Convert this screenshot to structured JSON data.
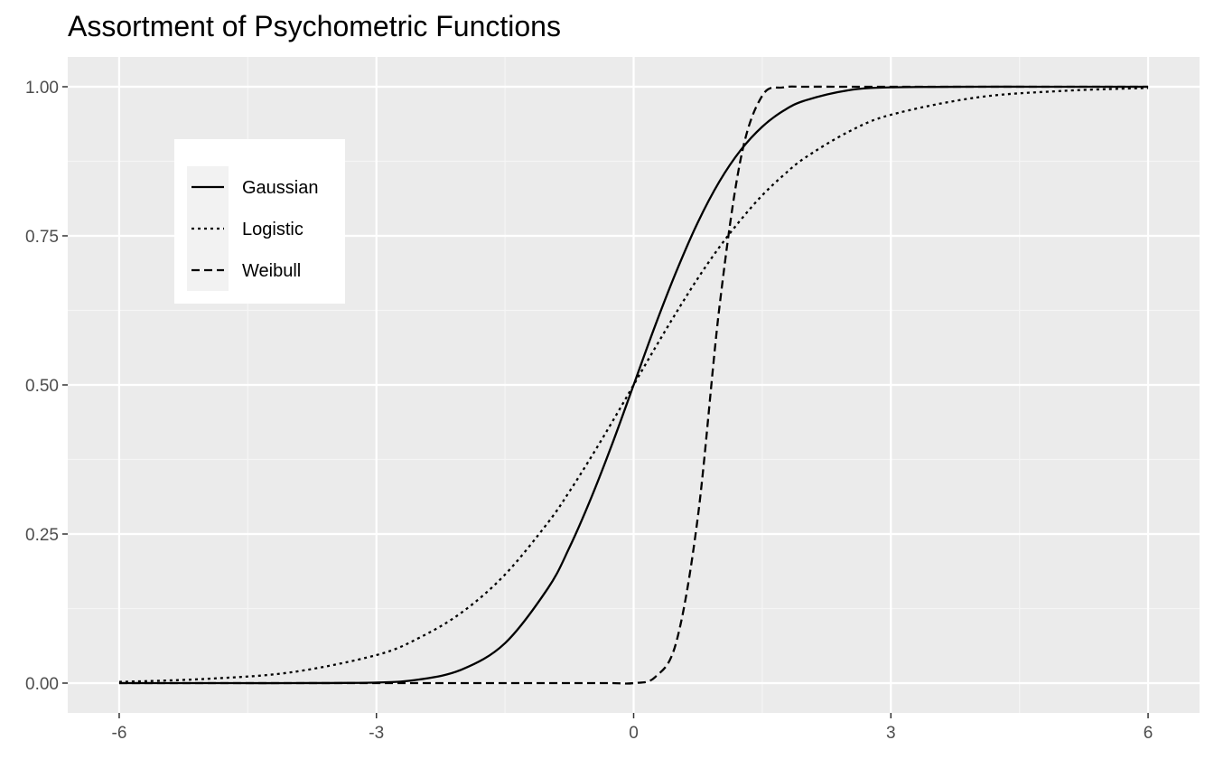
{
  "chart_data": {
    "type": "line",
    "title": "Assortment of Psychometric Functions",
    "xlabel": "",
    "ylabel": "",
    "xlim": [
      -6.6,
      6.6
    ],
    "ylim": [
      -0.05,
      1.05
    ],
    "x_ticks": [
      -6,
      -3,
      0,
      3,
      6
    ],
    "x_tick_labels": [
      "-6",
      "-3",
      "0",
      "3",
      "6"
    ],
    "y_ticks": [
      0,
      0.25,
      0.5,
      0.75,
      1
    ],
    "y_tick_labels": [
      "0.00",
      "0.25",
      "0.50",
      "0.75",
      "1.00"
    ],
    "grid": true,
    "legend_position": "top-left, inside plot panel",
    "x": [
      -6,
      -5,
      -4,
      -3,
      -2.5,
      -2,
      -1.5,
      -1,
      -0.75,
      -0.5,
      -0.25,
      0,
      0.25,
      0.5,
      0.75,
      1,
      1.25,
      1.5,
      1.75,
      2,
      2.5,
      3,
      4,
      5,
      6
    ],
    "series": [
      {
        "name": "Gaussian",
        "line_style": "solid",
        "values": [
          0.0,
          0.0,
          0.0,
          0.001,
          0.006,
          0.023,
          0.067,
          0.159,
          0.227,
          0.309,
          0.401,
          0.5,
          0.599,
          0.691,
          0.773,
          0.841,
          0.894,
          0.933,
          0.96,
          0.977,
          0.994,
          0.999,
          1.0,
          1.0,
          1.0
        ]
      },
      {
        "name": "Logistic",
        "line_style": "dotted",
        "values": [
          0.002,
          0.007,
          0.018,
          0.047,
          0.076,
          0.119,
          0.182,
          0.269,
          0.321,
          0.378,
          0.438,
          0.5,
          0.562,
          0.622,
          0.679,
          0.731,
          0.777,
          0.818,
          0.852,
          0.881,
          0.924,
          0.953,
          0.982,
          0.993,
          0.998
        ]
      },
      {
        "name": "Weibull",
        "line_style": "dashed",
        "values": [
          0.0,
          0.0,
          0.0,
          0.0,
          0.0,
          0.0,
          0.0,
          0.0,
          0.0,
          0.0,
          0.0,
          0.0,
          0.01,
          0.07,
          0.28,
          0.63,
          0.88,
          0.985,
          0.999,
          1.0,
          1.0,
          1.0,
          1.0,
          1.0,
          1.0
        ]
      }
    ]
  },
  "colors": {
    "panel_background": "#ebebeb",
    "grid_major": "#ffffff",
    "grid_minor": "#f5f5f5",
    "line": "#000000",
    "tick_label": "#4d4d4d",
    "legend_key_background": "#f2f2f2"
  }
}
